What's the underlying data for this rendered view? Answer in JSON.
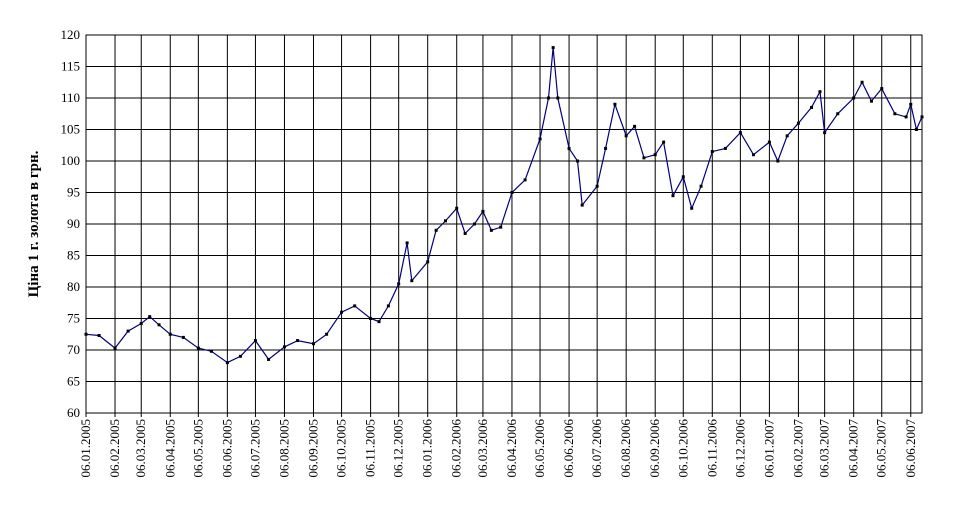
{
  "chart_data": {
    "type": "line",
    "y_label": "Ціна 1 г. золота в грн.",
    "ylim": [
      60,
      120
    ],
    "yticks": [
      60,
      65,
      70,
      75,
      80,
      85,
      90,
      95,
      100,
      105,
      110,
      115,
      120
    ],
    "xlim": [
      "06.01.2005",
      "18.06.2007"
    ],
    "xticks": [
      "06.01.2005",
      "06.02.2005",
      "06.03.2005",
      "06.04.2005",
      "06.05.2005",
      "06.06.2005",
      "06.07.2005",
      "06.08.2005",
      "06.09.2005",
      "06.10.2005",
      "06.11.2005",
      "06.12.2005",
      "06.01.2006",
      "06.02.2006",
      "06.03.2006",
      "06.04.2006",
      "06.05.2006",
      "06.06.2006",
      "06.07.2006",
      "06.08.2006",
      "06.09.2006",
      "06.10.2006",
      "06.11.2006",
      "06.12.2006",
      "06.01.2007",
      "06.02.2007",
      "06.03.2007",
      "06.04.2007",
      "06.05.2007",
      "06.06.2007"
    ],
    "grid": true,
    "series": [
      {
        "color": "#000080",
        "x": [
          "06.01.2005",
          "20.01.2005",
          "06.02.2005",
          "20.02.2005",
          "06.03.2005",
          "15.03.2005",
          "25.03.2005",
          "06.04.2005",
          "20.04.2005",
          "06.05.2005",
          "20.05.2005",
          "06.06.2005",
          "20.06.2005",
          "06.07.2005",
          "20.07.2005",
          "06.08.2005",
          "20.08.2005",
          "06.09.2005",
          "20.09.2005",
          "06.10.2005",
          "20.10.2005",
          "06.11.2005",
          "15.11.2005",
          "25.11.2005",
          "06.12.2005",
          "15.12.2005",
          "20.12.2005",
          "06.01.2006",
          "15.01.2006",
          "25.01.2006",
          "06.02.2006",
          "15.02.2006",
          "25.02.2006",
          "06.03.2006",
          "15.03.2006",
          "25.03.2006",
          "06.04.2006",
          "20.04.2006",
          "06.05.2006",
          "15.05.2006",
          "20.05.2006",
          "25.05.2006",
          "06.06.2006",
          "15.06.2006",
          "20.06.2006",
          "06.07.2006",
          "15.07.2006",
          "25.07.2006",
          "06.08.2006",
          "15.08.2006",
          "25.08.2006",
          "06.09.2006",
          "15.09.2006",
          "25.09.2006",
          "06.10.2006",
          "15.10.2006",
          "25.10.2006",
          "06.11.2006",
          "20.11.2006",
          "06.12.2006",
          "20.12.2006",
          "06.01.2007",
          "15.01.2007",
          "25.01.2007",
          "06.02.2007",
          "20.02.2007",
          "01.03.2007",
          "06.03.2007",
          "20.03.2007",
          "06.04.2007",
          "15.04.2007",
          "25.04.2007",
          "06.05.2007",
          "20.05.2007",
          "01.06.2007",
          "06.06.2007",
          "12.06.2007",
          "18.06.2007"
        ],
        "values": [
          72.5,
          72.3,
          70.3,
          73,
          74.2,
          75.3,
          74,
          72.5,
          72,
          70.3,
          69.8,
          68,
          69,
          71.5,
          68.5,
          70.5,
          71.5,
          71,
          72.5,
          76,
          77,
          75,
          74.5,
          77,
          80.5,
          87,
          81,
          84,
          89,
          90.5,
          92.5,
          88.5,
          90,
          92,
          89,
          89.5,
          95,
          97,
          103.5,
          110,
          118,
          110,
          102,
          100,
          93,
          96,
          102,
          109,
          104,
          105.5,
          100.5,
          101,
          103,
          94.5,
          97.5,
          92.5,
          96,
          101.5,
          102,
          104.5,
          101,
          103,
          100,
          104,
          106,
          108.5,
          111,
          104.5,
          107.5,
          110,
          112.5,
          109.5,
          111.5,
          107.5,
          107,
          109,
          105,
          107
        ]
      }
    ]
  }
}
